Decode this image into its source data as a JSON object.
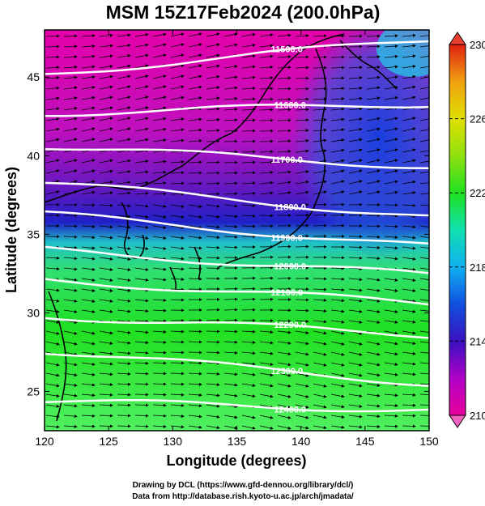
{
  "title": "MSM 15Z17Feb2024 (200.0hPa)",
  "xlabel": "Longitude (degrees)",
  "ylabel": "Latitude  (degrees)",
  "x_ticks": [
    "120",
    "125",
    "130",
    "135",
    "140",
    "145",
    "150"
  ],
  "y_ticks": [
    "25",
    "30",
    "35",
    "40",
    "45"
  ],
  "colorbar": {
    "ticks": [
      "230",
      "226",
      "222",
      "218",
      "214",
      "210"
    ],
    "range": [
      210,
      230
    ],
    "colors": [
      "#e8009a",
      "#b000c8",
      "#3a10c0",
      "#1050e0",
      "#10b0f0",
      "#10e0b0",
      "#20e020",
      "#90e010",
      "#e0e000",
      "#f0a010",
      "#e02010"
    ]
  },
  "contours": [
    {
      "label": "11500.0",
      "lat_start": 45.2,
      "lat_end": 47.4
    },
    {
      "label": "11600.0",
      "lat_start": 42.7,
      "lat_end": 43.3
    },
    {
      "label": "11700.0",
      "lat_start": 40.6,
      "lat_end": 39.3
    },
    {
      "label": "11800.0",
      "lat_start": 38.3,
      "lat_end": 36.1
    },
    {
      "label": "11900.0",
      "lat_start": 36.3,
      "lat_end": 34.2
    },
    {
      "label": "12000.0",
      "lat_start": 34.0,
      "lat_end": 32.4
    },
    {
      "label": "12100.0",
      "lat_start": 32.1,
      "lat_end": 30.6
    },
    {
      "label": "12200.0",
      "lat_start": 29.8,
      "lat_end": 28.6
    },
    {
      "label": "12300.0",
      "lat_start": 27.6,
      "lat_end": 25.5
    },
    {
      "label": "12400.0",
      "lat_start": 24.4,
      "lat_end": 23.8
    }
  ],
  "credits": [
    "Drawing by DCL (https://www.gfd-dennou.org/library/dcl/)",
    "Data from http://database.rish.kyoto-u.ac.jp/arch/jmadata/"
  ]
}
